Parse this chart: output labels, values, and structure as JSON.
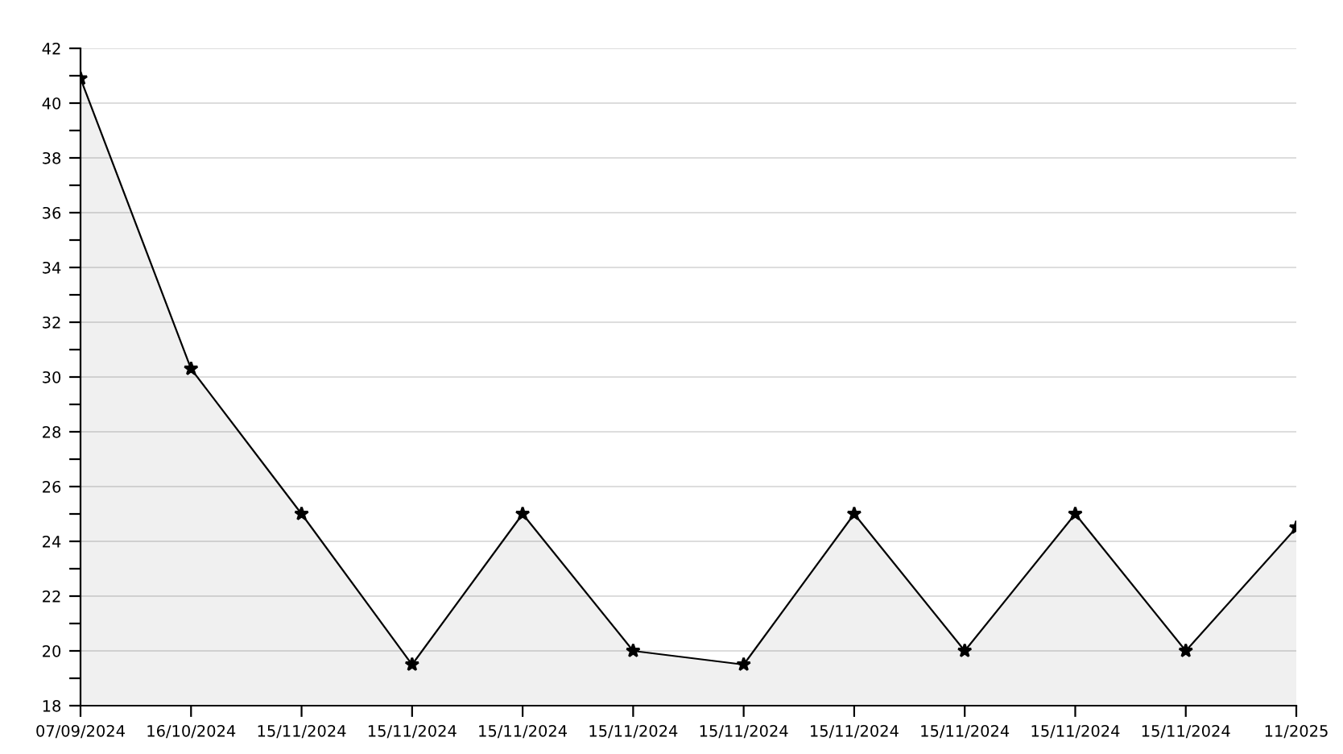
{
  "chart_data": {
    "type": "area",
    "categories": [
      "07/09/2024",
      "16/10/2024",
      "15/11/2024",
      "15/11/2024",
      "15/11/2024",
      "15/11/2024",
      "15/11/2024",
      "15/11/2024",
      "15/11/2024",
      "15/11/2024",
      "15/11/2024",
      "11/2025"
    ],
    "series": [
      {
        "color": "#000000",
        "values": [
          40.9,
          30.3,
          25,
          19.5,
          25,
          20,
          19.5,
          25,
          20,
          25,
          20,
          24.5
        ]
      }
    ],
    "ylim": [
      18,
      42
    ],
    "yticks": [
      18,
      {
        "value": 19,
        "label": null
      },
      20,
      {
        "value": 21,
        "label": null
      },
      22,
      {
        "value": 23,
        "label": null
      },
      24,
      {
        "value": 25,
        "label": null
      },
      26,
      {
        "value": 27,
        "label": null
      },
      28,
      {
        "value": 29,
        "label": null
      },
      30,
      {
        "value": 31,
        "label": null
      },
      32,
      {
        "value": 33,
        "label": null
      },
      34,
      {
        "value": 35,
        "label": null
      },
      36,
      {
        "value": 37,
        "label": null
      },
      38,
      {
        "value": 39,
        "label": null
      },
      40,
      {
        "value": 41,
        "label": null
      },
      42
    ],
    "grid": "y",
    "marker": "star",
    "line_style": "solid"
  }
}
